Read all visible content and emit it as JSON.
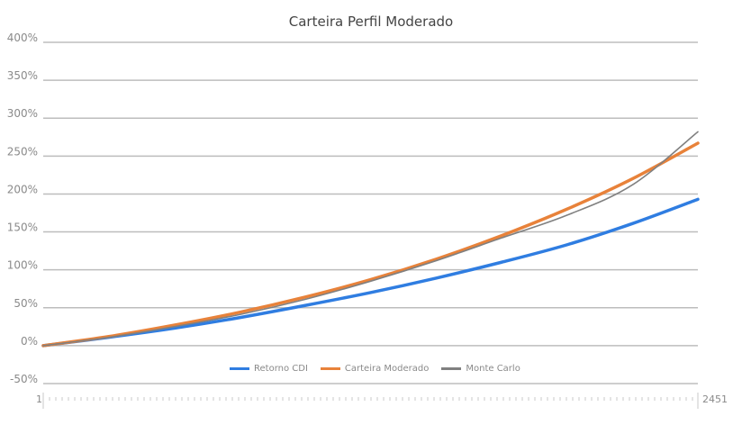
{
  "chart_data": {
    "type": "line",
    "title": "Carteira Perfil Moderado",
    "xlabel": "",
    "ylabel": "",
    "x_range": [
      1,
      2451
    ],
    "x_tick_labels": [
      "1",
      "2451"
    ],
    "ylim": [
      -50,
      400
    ],
    "y_ticks": [
      "400%",
      "350%",
      "300%",
      "250%",
      "200%",
      "150%",
      "100%",
      "50%",
      "0%",
      "-50%"
    ],
    "grid": true,
    "legend_position": "bottom",
    "x": [
      1,
      246,
      491,
      736,
      981,
      1226,
      1471,
      1716,
      1961,
      2206,
      2451
    ],
    "series": [
      {
        "name": "Retorno CDI",
        "color": "#2f7de1",
        "values": [
          0,
          11,
          23,
          37,
          53,
          70,
          89,
          110,
          133,
          161,
          193
        ]
      },
      {
        "name": "Carteira Moderado",
        "color": "#e8823a",
        "values": [
          0,
          12,
          27,
          44,
          64,
          87,
          114,
          145,
          180,
          220,
          267
        ]
      },
      {
        "name": "Monte Carlo",
        "color": "#808080",
        "values": [
          0,
          11,
          25,
          41,
          61,
          85,
          112,
          142,
          172,
          212,
          282
        ]
      }
    ]
  },
  "legend": {
    "items": [
      {
        "label": "Retorno CDI",
        "color": "#2f7de1"
      },
      {
        "label": "Carteira Moderado",
        "color": "#e8823a"
      },
      {
        "label": "Monte Carlo",
        "color": "#808080"
      }
    ]
  }
}
